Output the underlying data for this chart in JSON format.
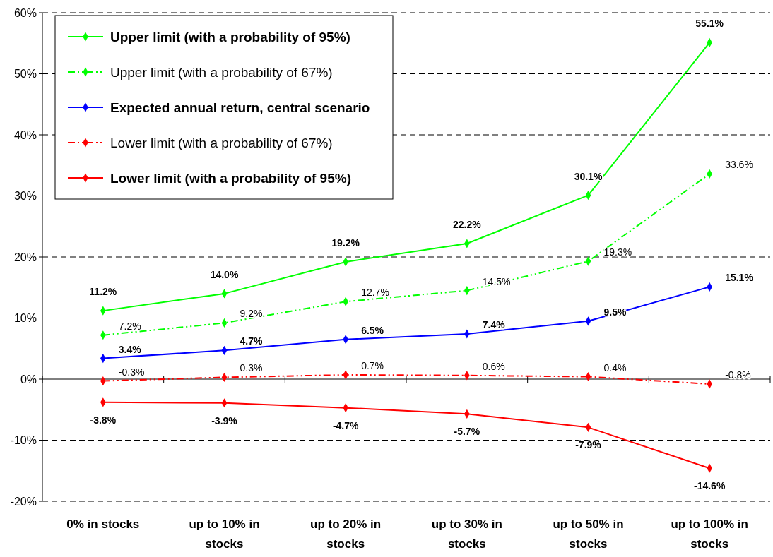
{
  "chart_data": {
    "type": "line",
    "categories": [
      "0% in stocks",
      "up to 10% in stocks",
      "up to 20% in stocks",
      "up to 30% in stocks",
      "up to 50% in stocks",
      "up to 100% in stocks"
    ],
    "series": [
      {
        "name": "Upper limit (with a probability of 95%)",
        "color": "#00ff00",
        "line_style": "solid",
        "values": [
          11.2,
          14.0,
          19.2,
          22.2,
          30.1,
          55.1
        ],
        "value_labels": [
          "11.2%",
          "14.0%",
          "19.2%",
          "22.2%",
          "30.1%",
          "55.1%"
        ]
      },
      {
        "name": "Upper limit (with a probability of 67%)",
        "color": "#00ff00",
        "line_style": "dashed",
        "values": [
          7.2,
          9.2,
          12.7,
          14.5,
          19.3,
          33.6
        ],
        "value_labels": [
          "7.2%",
          "9.2%",
          "12.7%",
          "14.5%",
          "19.3%",
          "33.6%"
        ]
      },
      {
        "name": "Expected annual return, central scenario",
        "color": "#0000ff",
        "line_style": "solid",
        "values": [
          3.4,
          4.7,
          6.5,
          7.4,
          9.5,
          15.1
        ],
        "value_labels": [
          "3.4%",
          "4.7%",
          "6.5%",
          "7.4%",
          "9.5%",
          "15.1%"
        ]
      },
      {
        "name": "Lower limit (with a probability of 67%)",
        "color": "#ff0000",
        "line_style": "dashed",
        "values": [
          -0.3,
          0.3,
          0.7,
          0.6,
          0.4,
          -0.8
        ],
        "value_labels": [
          "-0.3%",
          "0.3%",
          "0.7%",
          "0.6%",
          "0.4%",
          "-0.8%"
        ]
      },
      {
        "name": "Lower limit (with a probability of 95%)",
        "color": "#ff0000",
        "line_style": "solid",
        "values": [
          -3.8,
          -3.9,
          -4.7,
          -5.7,
          -7.9,
          -14.6
        ],
        "value_labels": [
          "-3.8%",
          "-3.9%",
          "-4.7%",
          "-5.7%",
          "-7.9%",
          "-14.6%"
        ]
      }
    ],
    "ylim": [
      -20,
      60
    ],
    "yticks": [
      {
        "value": -20,
        "label": "-20%"
      },
      {
        "value": -10,
        "label": "-10%"
      },
      {
        "value": 0,
        "label": "0%"
      },
      {
        "value": 10,
        "label": "10%"
      },
      {
        "value": 20,
        "label": "20%"
      },
      {
        "value": 30,
        "label": "30%"
      },
      {
        "value": 40,
        "label": "40%"
      },
      {
        "value": 50,
        "label": "50%"
      },
      {
        "value": 60,
        "label": "60%"
      }
    ],
    "grid": "y",
    "legend": "top left",
    "marker": "diamond"
  }
}
